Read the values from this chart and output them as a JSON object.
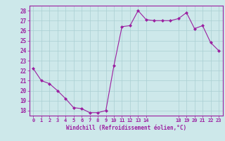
{
  "x": [
    0,
    1,
    2,
    3,
    4,
    5,
    6,
    7,
    8,
    9,
    10,
    11,
    12,
    13,
    14,
    15,
    16,
    17,
    18,
    19,
    20,
    21,
    22,
    23
  ],
  "y": [
    22.2,
    21.0,
    20.7,
    20.0,
    19.2,
    18.3,
    18.2,
    17.8,
    17.8,
    18.0,
    22.5,
    26.4,
    26.5,
    28.0,
    27.1,
    27.0,
    27.0,
    27.0,
    27.2,
    27.8,
    26.2,
    26.5,
    24.8,
    24.0
  ],
  "line_color": "#9b1fa0",
  "marker": "D",
  "marker_size": 2.0,
  "bg_color": "#cde8ea",
  "grid_color": "#aacfd2",
  "xlabel": "Windchill (Refroidissement éolien,°C)",
  "xlabel_color": "#9b1fa0",
  "tick_color": "#9b1fa0",
  "spine_color": "#9b1fa0",
  "ylim": [
    17.5,
    28.5
  ],
  "yticks": [
    18,
    19,
    20,
    21,
    22,
    23,
    24,
    25,
    26,
    27,
    28
  ],
  "xticks": [
    0,
    1,
    2,
    3,
    4,
    5,
    6,
    7,
    8,
    9,
    10,
    11,
    12,
    13,
    14,
    18,
    19,
    20,
    21,
    22,
    23
  ],
  "xtick_labels": [
    "0",
    "1",
    "2",
    "3",
    "4",
    "5",
    "6",
    "7",
    "8",
    "9",
    "10",
    "11",
    "12",
    "13",
    "14",
    "18",
    "19",
    "20",
    "21",
    "22",
    "23"
  ],
  "xlim": [
    -0.5,
    23.5
  ]
}
